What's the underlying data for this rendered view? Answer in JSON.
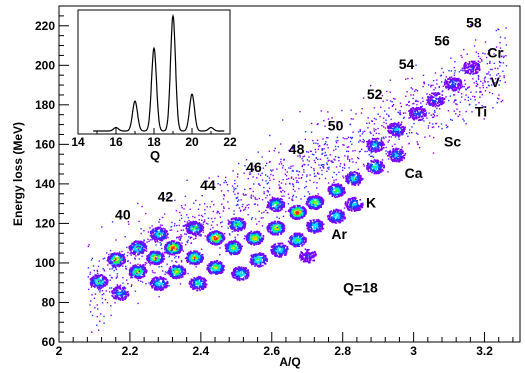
{
  "chart_data": {
    "type": "scatter",
    "title": "",
    "xlabel": "A/Q",
    "ylabel": "Energy loss (MeV)",
    "xlim": [
      2.0,
      3.3
    ],
    "ylim": [
      60,
      230
    ],
    "xticks": [
      "2",
      "2.2",
      "2.4",
      "2.6",
      "2.8",
      "3",
      "3.2"
    ],
    "yticks": [
      "60",
      "80",
      "100",
      "120",
      "140",
      "160",
      "180",
      "200",
      "220"
    ],
    "mass_labels": [
      {
        "text": "40",
        "x": 2.18,
        "y": 122
      },
      {
        "text": "42",
        "x": 2.3,
        "y": 131
      },
      {
        "text": "44",
        "x": 2.42,
        "y": 137
      },
      {
        "text": "46",
        "x": 2.55,
        "y": 146
      },
      {
        "text": "48",
        "x": 2.67,
        "y": 155
      },
      {
        "text": "50",
        "x": 2.78,
        "y": 167
      },
      {
        "text": "52",
        "x": 2.89,
        "y": 183
      },
      {
        "text": "54",
        "x": 2.98,
        "y": 198
      },
      {
        "text": "56",
        "x": 3.08,
        "y": 210
      },
      {
        "text": "58",
        "x": 3.17,
        "y": 219
      }
    ],
    "element_labels": [
      {
        "text": "Cr",
        "x": 3.23,
        "y": 204
      },
      {
        "text": "V",
        "x": 3.23,
        "y": 189
      },
      {
        "text": "Ti",
        "x": 3.19,
        "y": 174
      },
      {
        "text": "Sc",
        "x": 3.11,
        "y": 159
      },
      {
        "text": "Ca",
        "x": 3.0,
        "y": 143
      },
      {
        "text": "K",
        "x": 2.88,
        "y": 128
      },
      {
        "text": "Ar",
        "x": 2.79,
        "y": 112
      },
      {
        "text": "Q=18",
        "x": 2.85,
        "y": 85
      }
    ],
    "clusters": [
      {
        "x": 2.11,
        "y": 91,
        "w": 0.6
      },
      {
        "x": 2.16,
        "y": 102,
        "w": 0.8
      },
      {
        "x": 2.17,
        "y": 85,
        "w": 0.4
      },
      {
        "x": 2.22,
        "y": 96,
        "w": 0.7
      },
      {
        "x": 2.22,
        "y": 108,
        "w": 0.6
      },
      {
        "x": 2.27,
        "y": 103,
        "w": 0.8
      },
      {
        "x": 2.28,
        "y": 115,
        "w": 0.5
      },
      {
        "x": 2.28,
        "y": 90,
        "w": 0.5
      },
      {
        "x": 2.32,
        "y": 108,
        "w": 1.0
      },
      {
        "x": 2.33,
        "y": 96,
        "w": 0.7
      },
      {
        "x": 2.38,
        "y": 103,
        "w": 0.8
      },
      {
        "x": 2.38,
        "y": 118,
        "w": 0.6
      },
      {
        "x": 2.39,
        "y": 90,
        "w": 0.5
      },
      {
        "x": 2.44,
        "y": 113,
        "w": 1.0
      },
      {
        "x": 2.44,
        "y": 98,
        "w": 0.7
      },
      {
        "x": 2.49,
        "y": 108,
        "w": 0.7
      },
      {
        "x": 2.5,
        "y": 120,
        "w": 0.6
      },
      {
        "x": 2.51,
        "y": 95,
        "w": 0.5
      },
      {
        "x": 2.55,
        "y": 113,
        "w": 0.8
      },
      {
        "x": 2.56,
        "y": 102,
        "w": 0.6
      },
      {
        "x": 2.61,
        "y": 118,
        "w": 0.8
      },
      {
        "x": 2.61,
        "y": 130,
        "w": 0.6
      },
      {
        "x": 2.62,
        "y": 107,
        "w": 0.5
      },
      {
        "x": 2.67,
        "y": 126,
        "w": 1.0
      },
      {
        "x": 2.67,
        "y": 112,
        "w": 0.6
      },
      {
        "x": 2.72,
        "y": 131,
        "w": 0.7
      },
      {
        "x": 2.72,
        "y": 119,
        "w": 0.5
      },
      {
        "x": 2.78,
        "y": 137,
        "w": 0.6
      },
      {
        "x": 2.78,
        "y": 124,
        "w": 0.5
      },
      {
        "x": 2.83,
        "y": 143,
        "w": 0.5
      },
      {
        "x": 2.83,
        "y": 130,
        "w": 0.4
      },
      {
        "x": 2.89,
        "y": 149,
        "w": 0.5
      },
      {
        "x": 2.89,
        "y": 160,
        "w": 0.4
      },
      {
        "x": 2.95,
        "y": 155,
        "w": 0.4
      },
      {
        "x": 2.95,
        "y": 168,
        "w": 0.4
      },
      {
        "x": 3.01,
        "y": 176,
        "w": 0.3
      },
      {
        "x": 3.06,
        "y": 183,
        "w": 0.3
      },
      {
        "x": 3.11,
        "y": 191,
        "w": 0.3
      },
      {
        "x": 3.16,
        "y": 199,
        "w": 0.2
      },
      {
        "x": 2.7,
        "y": 104,
        "w": 0.2
      }
    ],
    "inset": {
      "type": "line",
      "xlabel": "Q",
      "xlim": [
        14,
        22
      ],
      "xticks": [
        "14",
        "16",
        "18",
        "20",
        "22"
      ],
      "peaks": [
        {
          "x": 16.0,
          "height": 0.03
        },
        {
          "x": 17.0,
          "height": 0.26
        },
        {
          "x": 18.0,
          "height": 0.72
        },
        {
          "x": 19.0,
          "height": 1.0
        },
        {
          "x": 20.0,
          "height": 0.32
        },
        {
          "x": 21.0,
          "height": 0.03
        }
      ]
    }
  }
}
